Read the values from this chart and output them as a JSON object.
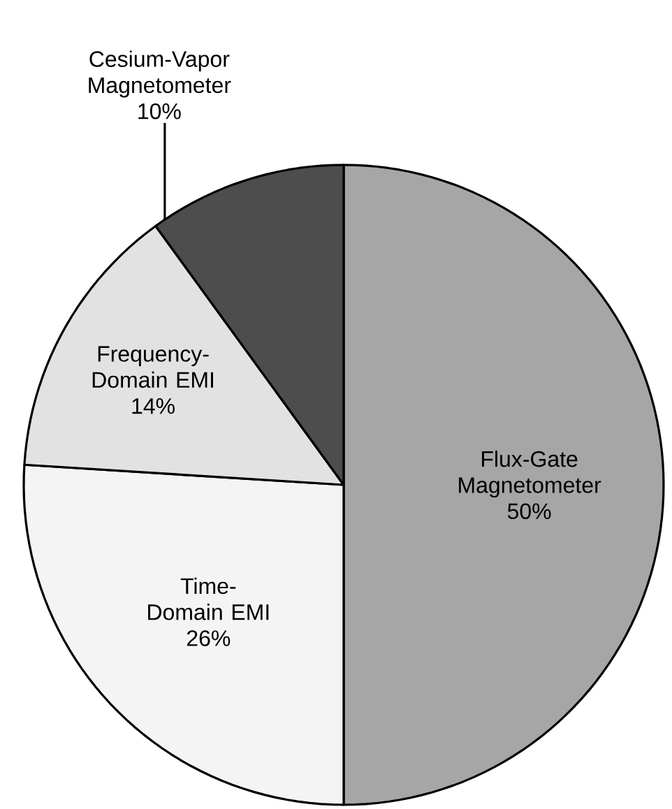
{
  "chart_data": {
    "type": "pie",
    "categories": [
      "Flux-Gate Magnetometer",
      "Time-Domain EMI",
      "Frequency-Domain EMI",
      "Cesium-Vapor Magnetometer"
    ],
    "values": [
      50,
      26,
      14,
      10
    ],
    "colors": [
      "#a6a6a6",
      "#f4f4f4",
      "#e2e2e2",
      "#4d4d4d"
    ],
    "value_labels": [
      "50%",
      "26%",
      "14%",
      "10%"
    ]
  }
}
